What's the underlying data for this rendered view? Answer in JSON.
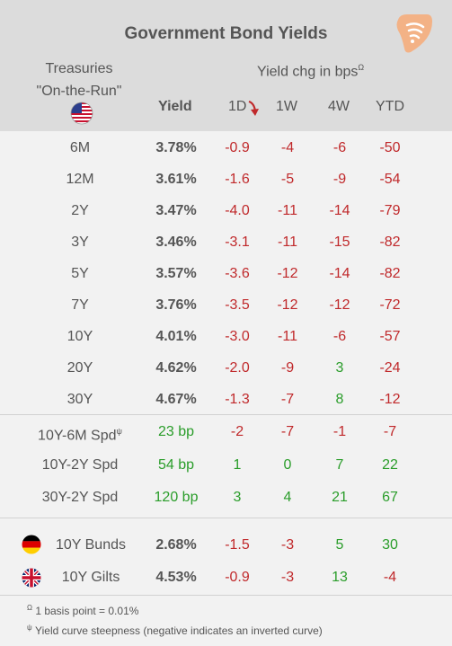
{
  "title": "Government Bond Yields",
  "header": {
    "treasuries_line1": "Treasuries",
    "treasuries_line2": "\"On-the-Run\"",
    "yield": "Yield",
    "chg_label": "Yield chg in bps",
    "chg_sup": "Ω",
    "cols": [
      "1D",
      "1W",
      "4W",
      "YTD"
    ]
  },
  "treasury_rows": [
    {
      "label": "6M",
      "yield": "3.78%",
      "d1": "-0.9",
      "w1": "-4",
      "w4": "-6",
      "ytd": "-50"
    },
    {
      "label": "12M",
      "yield": "3.61%",
      "d1": "-1.6",
      "w1": "-5",
      "w4": "-9",
      "ytd": "-54"
    },
    {
      "label": "2Y",
      "yield": "3.47%",
      "d1": "-4.0",
      "w1": "-11",
      "w4": "-14",
      "ytd": "-79"
    },
    {
      "label": "3Y",
      "yield": "3.46%",
      "d1": "-3.1",
      "w1": "-11",
      "w4": "-15",
      "ytd": "-82"
    },
    {
      "label": "5Y",
      "yield": "3.57%",
      "d1": "-3.6",
      "w1": "-12",
      "w4": "-14",
      "ytd": "-82"
    },
    {
      "label": "7Y",
      "yield": "3.76%",
      "d1": "-3.5",
      "w1": "-12",
      "w4": "-12",
      "ytd": "-72"
    },
    {
      "label": "10Y",
      "yield": "4.01%",
      "d1": "-3.0",
      "w1": "-11",
      "w4": "-6",
      "ytd": "-57"
    },
    {
      "label": "20Y",
      "yield": "4.62%",
      "d1": "-2.0",
      "w1": "-9",
      "w4": "3",
      "ytd": "-24"
    },
    {
      "label": "30Y",
      "yield": "4.67%",
      "d1": "-1.3",
      "w1": "-7",
      "w4": "8",
      "ytd": "-12"
    }
  ],
  "spread_rows": [
    {
      "label": "10Y-6M Spd",
      "sup": "ψ",
      "yield": "23 bp",
      "d1": "-2",
      "w1": "-7",
      "w4": "-1",
      "ytd": "-7"
    },
    {
      "label": "10Y-2Y Spd",
      "sup": "",
      "yield": "54 bp",
      "d1": "1",
      "w1": "0",
      "w4": "7",
      "ytd": "22"
    },
    {
      "label": "30Y-2Y Spd",
      "sup": "",
      "yield": "120 bp",
      "d1": "3",
      "w1": "4",
      "w4": "21",
      "ytd": "67"
    }
  ],
  "intl_rows": [
    {
      "label": "10Y Bunds",
      "yield": "2.68%",
      "d1": "-1.5",
      "w1": "-3",
      "w4": "5",
      "ytd": "30"
    },
    {
      "label": "10Y Gilts",
      "yield": "4.53%",
      "d1": "-0.9",
      "w1": "-3",
      "w4": "13",
      "ytd": "-4"
    }
  ],
  "footnotes": [
    {
      "sup": "Ω",
      "text": "1 basis point = 0.01%"
    },
    {
      "sup": "ψ",
      "text": "Yield curve steepness (negative indicates an inverted curve)"
    }
  ],
  "colors": {
    "negative": "#c0292b",
    "positive": "#2a9d2a",
    "header_bg": "#dcdcdc",
    "logo": "#f0b488"
  }
}
